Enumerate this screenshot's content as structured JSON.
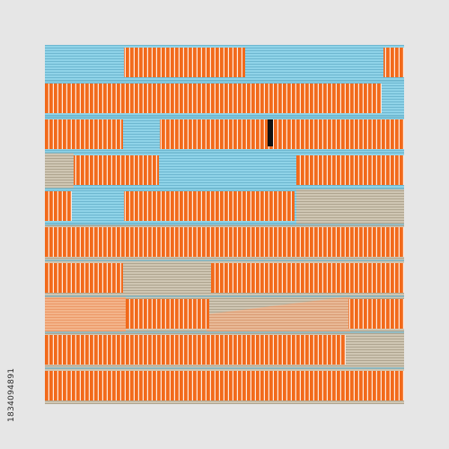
{
  "artwork": {
    "side_id": "1834094891",
    "colors": {
      "background": "#e6e6e6",
      "orange": "#f26a1b",
      "orange_dark": "#e55a0e",
      "cyan": "#8fd3e8",
      "beige": "#cfc6b3",
      "peach": "#f3b48a",
      "black": "#111111"
    }
  }
}
